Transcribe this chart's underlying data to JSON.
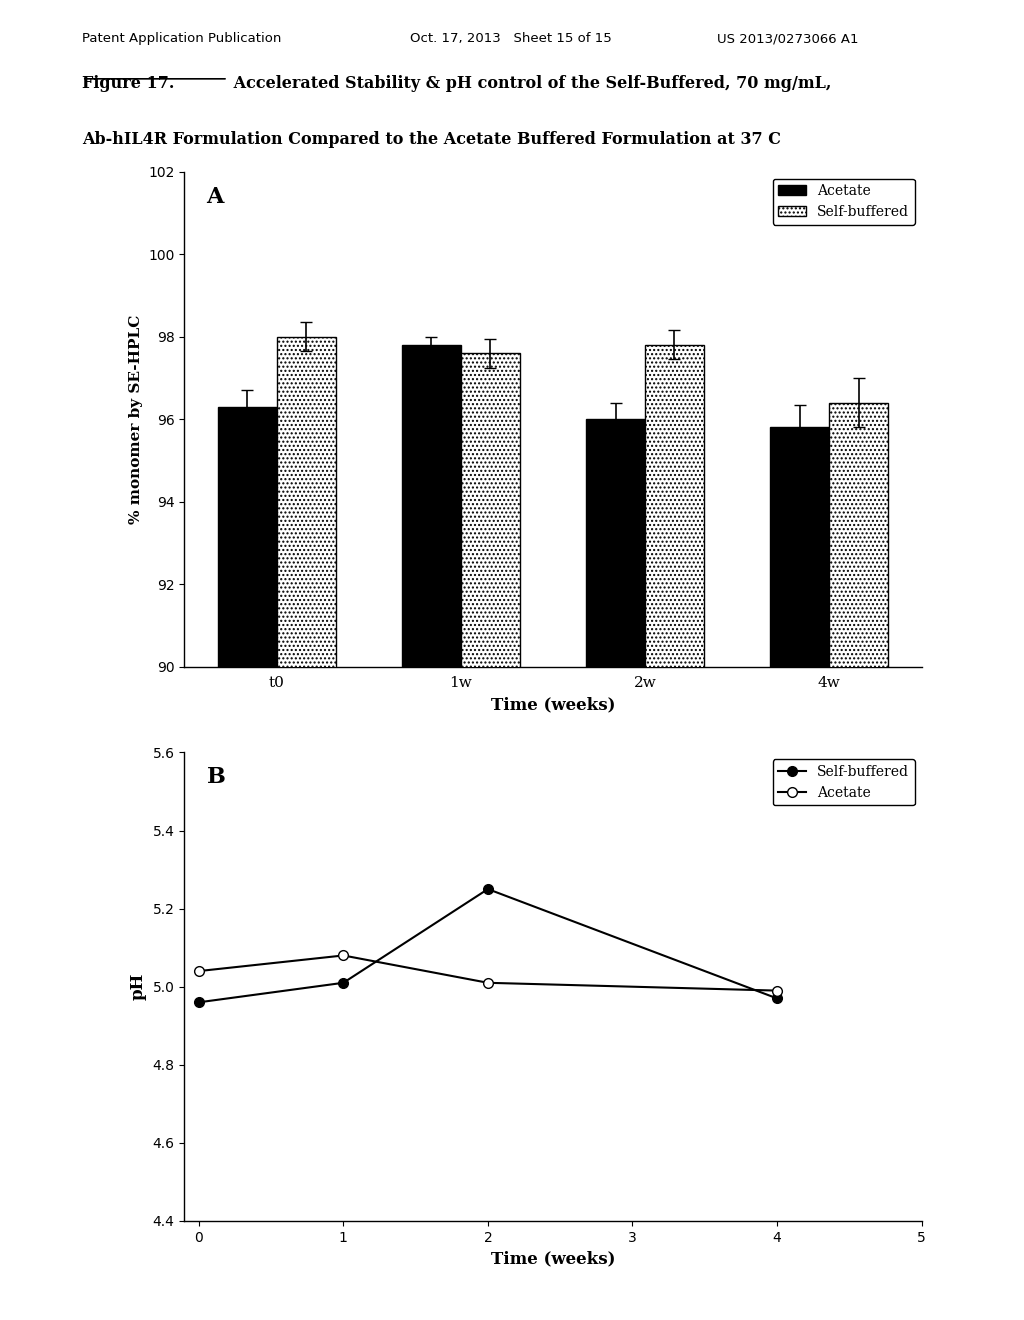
{
  "header_left": "Patent Application Publication",
  "header_mid": "Oct. 17, 2013   Sheet 15 of 15",
  "header_right": "US 2013/0273066 A1",
  "title_underlined": "Figure 17.",
  "title_rest_line1": " Accelerated Stability & pH control of the Self-Buffered, 70 mg/mL,",
  "title_line2": "Ab-hIL4R Formulation Compared to the Acetate Buffered Formulation at 37 C",
  "bg_color": "#ffffff",
  "bar_categories": [
    "t0",
    "1w",
    "2w",
    "4w"
  ],
  "acetate_values": [
    96.3,
    97.8,
    96.0,
    95.8
  ],
  "selfbuffered_values": [
    98.0,
    97.6,
    97.8,
    96.4
  ],
  "acetate_errors": [
    0.4,
    0.2,
    0.4,
    0.55
  ],
  "selfbuffered_errors": [
    0.35,
    0.35,
    0.35,
    0.6
  ],
  "bar_ylabel": "% monomer by SE-HPLC",
  "bar_xlabel": "Time (weeks)",
  "bar_ylim": [
    90,
    102
  ],
  "bar_yticks": [
    90,
    92,
    94,
    96,
    98,
    100,
    102
  ],
  "panel_a_label": "A",
  "legend_a_1": "Acetate",
  "legend_a_2": "Self-buffered",
  "line_x": [
    0,
    1,
    2,
    4
  ],
  "selfbuffered_ph": [
    4.96,
    5.01,
    5.25,
    4.97
  ],
  "acetate_ph": [
    5.04,
    5.08,
    5.01,
    4.99
  ],
  "line_ylabel": "pH",
  "line_xlabel": "Time (weeks)",
  "line_ylim": [
    4.4,
    5.6
  ],
  "line_yticks": [
    4.4,
    4.6,
    4.8,
    5.0,
    5.2,
    5.4,
    5.6
  ],
  "line_xticks": [
    0,
    1,
    2,
    3,
    4,
    5
  ],
  "panel_b_label": "B",
  "legend_b_1": "Self-buffered",
  "legend_b_2": "Acetate"
}
